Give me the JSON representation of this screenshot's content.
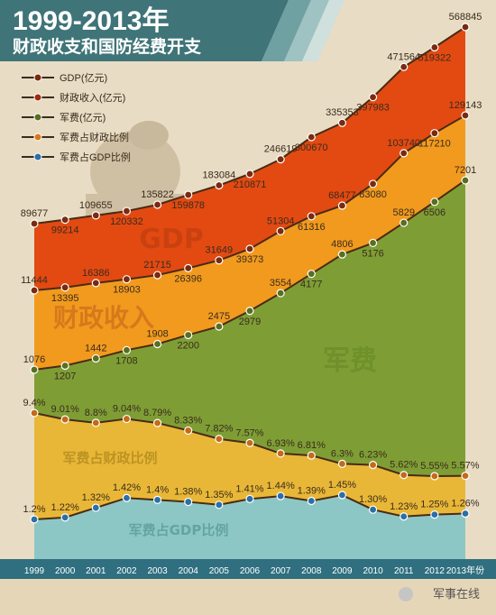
{
  "header": {
    "title": "1999-2013年",
    "subtitle": "财政收支和国防经费开支",
    "watermark": "军事在线"
  },
  "colors": {
    "header_bg": "#3f7478",
    "gdp": "#e24a12",
    "revenue": "#f19a1e",
    "military": "#7e9e35",
    "ratio_fiscal": "#e8b737",
    "ratio_gdp": "#8cc7c5",
    "axis_band": "#2f6f80"
  },
  "chart_data": {
    "type": "area",
    "x": [
      "1999",
      "2000",
      "2001",
      "2002",
      "2003",
      "2004",
      "2005",
      "2006",
      "2007",
      "2008",
      "2009",
      "2010",
      "2011",
      "2012",
      "2013年份"
    ],
    "legend": [
      "GDP(亿元)",
      "财政收入(亿元)",
      "军费(亿元)",
      "军费占财政比例",
      "军费占GDP比例"
    ],
    "series": [
      {
        "name": "GDP(亿元)",
        "values": [
          89677,
          99214,
          109655,
          120332,
          135822,
          159878,
          183084,
          210871,
          246619,
          300670,
          335353,
          397983,
          471564,
          519322,
          568845
        ],
        "labels": [
          "89677",
          "99214",
          "109655",
          "120332",
          "135822",
          "159878",
          "183084",
          "210871",
          "246619",
          "300670",
          "335353",
          "397983",
          "471564",
          "519322",
          "568845"
        ]
      },
      {
        "name": "财政收入(亿元)",
        "values": [
          11444,
          13395,
          16386,
          18903,
          21715,
          26396,
          31649,
          39373,
          51304,
          61316,
          68477,
          83080,
          103740,
          117210,
          129143
        ],
        "labels": [
          "11444",
          "13395",
          "16386",
          "18903",
          "21715",
          "26396",
          "31649",
          "39373",
          "51304",
          "61316",
          "68477",
          "83080",
          "103740",
          "117210",
          "129143"
        ]
      },
      {
        "name": "军费(亿元)",
        "values": [
          1076,
          1207,
          1442,
          1708,
          1908,
          2200,
          2475,
          2979,
          3554,
          4177,
          4806,
          5176,
          5829,
          6506,
          7201
        ],
        "labels": [
          "1076",
          "1207",
          "1442",
          "1708",
          "1908",
          "2200",
          "2475",
          "2979",
          "3554",
          "4177",
          "4806",
          "5176",
          "5829",
          "6506",
          "7201"
        ]
      },
      {
        "name": "军费占财政比例",
        "values": [
          9.4,
          9.01,
          8.8,
          9.04,
          8.79,
          8.33,
          7.82,
          7.57,
          6.93,
          6.81,
          6.3,
          6.23,
          5.62,
          5.55,
          5.57
        ],
        "labels": [
          "9.4%",
          "9.01%",
          "8.8%",
          "9.04%",
          "8.79%",
          "8.33%",
          "7.82%",
          "7.57%",
          "6.93%",
          "6.81%",
          "6.3%",
          "6.23%",
          "5.62%",
          "5.55%",
          "5.57%"
        ]
      },
      {
        "name": "军费占GDP比例",
        "values": [
          1.2,
          1.22,
          1.32,
          1.42,
          1.4,
          1.38,
          1.35,
          1.41,
          1.44,
          1.39,
          1.45,
          1.3,
          1.23,
          1.25,
          1.26
        ],
        "labels": [
          "1.2%",
          "1.22%",
          "1.32%",
          "1.42%",
          "1.4%",
          "1.38%",
          "1.35%",
          "1.41%",
          "1.44%",
          "1.39%",
          "1.45%",
          "1.30%",
          "1.23%",
          "1.25%",
          "1.26%"
        ]
      }
    ],
    "area_labels": [
      "GDP",
      "财政收入",
      "军费",
      "军费占财政比例",
      "军费占GDP比例"
    ],
    "legend_position": "top-left"
  }
}
